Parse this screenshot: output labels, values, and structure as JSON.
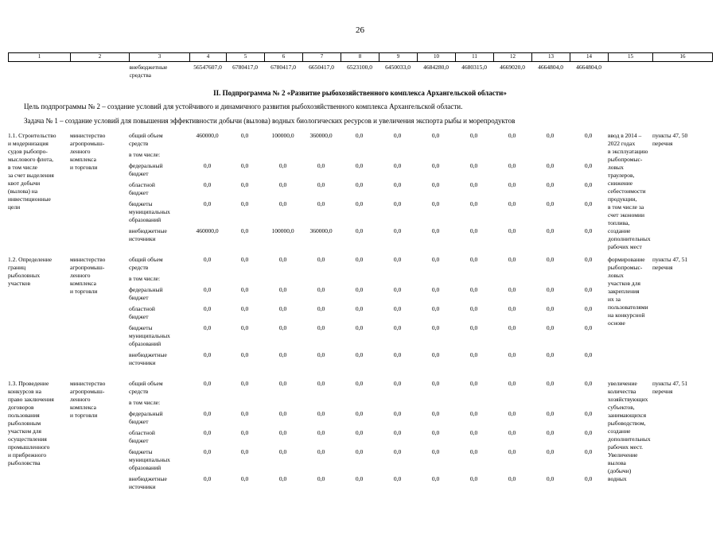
{
  "page_number": "26",
  "strip": {
    "column_numbers": [
      "1",
      "2",
      "3",
      "4",
      "5",
      "6",
      "7",
      "8",
      "9",
      "10",
      "11",
      "12",
      "13",
      "14",
      "15",
      "16"
    ],
    "row": {
      "label": "внебюджетные\nсредства",
      "values": [
        "56547607,0",
        "6780417,0",
        "6780417,0",
        "6650417,0",
        "6523100,0",
        "6450033,0",
        "4684280,0",
        "4680315,0",
        "4669020,0",
        "4664804,0",
        "4664804,0"
      ]
    }
  },
  "heading": "II. Подпрограмма № 2 «Развитие рыбохозяйственного комплекса Архангельской области»",
  "paragraphs": {
    "goal": "Цель подпрограммы № 2 – создание условий для устойчивого и динамичного развития рыбохозяйственного комплекса Архангельской области.",
    "task": "Задача № 1 – создание условий для повышения эффективности добычи (вылова) водных биологических ресурсов и увеличения экспорта рыбы и морепродуктов"
  },
  "table": {
    "groups": [
      {
        "activity": "1.1. Строительство\nи модернизация\nсудов рыбопро-\nмыслового флота,\nв том числе\nза счет выделения\nквот добычи\n(вылова) на\nинвестиционные\nцели",
        "executor": "министерство\nагропромыш-\nленного\nкомплекса\nи торговли",
        "rows": [
          {
            "label": "общий объем\nсредств",
            "values": [
              "460000,0",
              "0,0",
              "100000,0",
              "360000,0",
              "0,0",
              "0,0",
              "0,0",
              "0,0",
              "0,0",
              "0,0",
              "0,0"
            ]
          },
          {
            "label": "в том числе:",
            "values": []
          },
          {
            "label": "федеральный\nбюджет",
            "values": [
              "0,0",
              "0,0",
              "0,0",
              "0,0",
              "0,0",
              "0,0",
              "0,0",
              "0,0",
              "0,0",
              "0,0",
              "0,0"
            ]
          },
          {
            "label": "областной\nбюджет",
            "values": [
              "0,0",
              "0,0",
              "0,0",
              "0,0",
              "0,0",
              "0,0",
              "0,0",
              "0,0",
              "0,0",
              "0,0",
              "0,0"
            ]
          },
          {
            "label": "бюджеты\nмуниципальных\nобразований",
            "values": [
              "0,0",
              "0,0",
              "0,0",
              "0,0",
              "0,0",
              "0,0",
              "0,0",
              "0,0",
              "0,0",
              "0,0",
              "0,0"
            ]
          },
          {
            "label": "внебюджетные\nисточники",
            "values": [
              "460000,0",
              "0,0",
              "100000,0",
              "360000,0",
              "0,0",
              "0,0",
              "0,0",
              "0,0",
              "0,0",
              "0,0",
              "0,0"
            ]
          }
        ],
        "result": "ввод в 2014 –\n2022 годах\nв эксплуатацию\nрыбопромыс-\nловых\nтраулеров,\nснижение\nсебестоимости\nпродукции,\nв том числе за\nсчет экономии\nтоплива,\nсоздание\nдополнительных\nрабочих мест",
        "ref": "пункты 47, 50\nперечня"
      },
      {
        "activity": "1.2. Определение\nграниц\nрыболовных\nучастков",
        "executor": "министерство\nагропромыш-\nленного\nкомплекса\nи торговли",
        "rows": [
          {
            "label": "общий объем\nсредств",
            "values": [
              "0,0",
              "0,0",
              "0,0",
              "0,0",
              "0,0",
              "0,0",
              "0,0",
              "0,0",
              "0,0",
              "0,0",
              "0,0"
            ]
          },
          {
            "label": "в том числе:",
            "values": []
          },
          {
            "label": "федеральный\nбюджет",
            "values": [
              "0,0",
              "0,0",
              "0,0",
              "0,0",
              "0,0",
              "0,0",
              "0,0",
              "0,0",
              "0,0",
              "0,0",
              "0,0"
            ]
          },
          {
            "label": "областной\nбюджет",
            "values": [
              "0,0",
              "0,0",
              "0,0",
              "0,0",
              "0,0",
              "0,0",
              "0,0",
              "0,0",
              "0,0",
              "0,0",
              "0,0"
            ]
          },
          {
            "label": "бюджеты\nмуниципальных\nобразований",
            "values": [
              "0,0",
              "0,0",
              "0,0",
              "0,0",
              "0,0",
              "0,0",
              "0,0",
              "0,0",
              "0,0",
              "0,0",
              "0,0"
            ]
          },
          {
            "label": "внебюджетные\nисточники",
            "values": [
              "0,0",
              "0,0",
              "0,0",
              "0,0",
              "0,0",
              "0,0",
              "0,0",
              "0,0",
              "0,0",
              "0,0",
              "0,0"
            ]
          }
        ],
        "result": "формирование\nрыбопромыс-\nловых\nучастков для\nзакрепления\nих за\nпользователями\nна конкурсной\nоснове",
        "ref": "пункты 47, 51\nперечня"
      },
      {
        "activity": "1.3. Проведение\nконкурсов на\nправо заключения\nдоговоров\nпользования\nрыболовным\nучастком для\nосуществления\nпромышленного\nи прибрежного\nрыболовства",
        "executor": "министерство\nагропромыш-\nленного\nкомплекса\nи торговли",
        "rows": [
          {
            "label": "общий объем\nсредств",
            "values": [
              "0,0",
              "0,0",
              "0,0",
              "0,0",
              "0,0",
              "0,0",
              "0,0",
              "0,0",
              "0,0",
              "0,0",
              "0,0"
            ]
          },
          {
            "label": "в том числе:",
            "values": []
          },
          {
            "label": "федеральный\nбюджет",
            "values": [
              "0,0",
              "0,0",
              "0,0",
              "0,0",
              "0,0",
              "0,0",
              "0,0",
              "0,0",
              "0,0",
              "0,0",
              "0,0"
            ]
          },
          {
            "label": "областной\nбюджет",
            "values": [
              "0,0",
              "0,0",
              "0,0",
              "0,0",
              "0,0",
              "0,0",
              "0,0",
              "0,0",
              "0,0",
              "0,0",
              "0,0"
            ]
          },
          {
            "label": "бюджеты\nмуниципальных\nобразований",
            "values": [
              "0,0",
              "0,0",
              "0,0",
              "0,0",
              "0,0",
              "0,0",
              "0,0",
              "0,0",
              "0,0",
              "0,0",
              "0,0"
            ]
          },
          {
            "label": "внебюджетные\nисточники",
            "values": [
              "0,0",
              "0,0",
              "0,0",
              "0,0",
              "0,0",
              "0,0",
              "0,0",
              "0,0",
              "0,0",
              "0,0",
              "0,0"
            ]
          }
        ],
        "result": "увеличение\nколичества\nхозяйствующих\nсубъектов,\nзанимающихся\nрыбоводством,\nсоздание\nдополнительных\nрабочих мест.\nУвеличение\nвылова\n(добычи)\nводных",
        "ref": "пункты 47, 51\nперечня"
      }
    ]
  }
}
